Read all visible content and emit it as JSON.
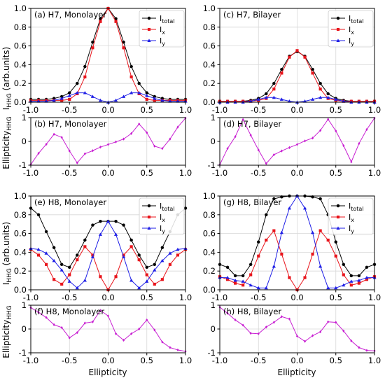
{
  "figure": {
    "ylabel_int_main": "I",
    "ylabel_int_sub": "HHG",
    "ylabel_int_tail": " (arb.units)",
    "ylabel_ell_main": "Ellipticity",
    "ylabel_ell_sub": "HHG",
    "xlabel": "Ellipticity"
  },
  "colors": {
    "total": "#000000",
    "x": "#e8141b",
    "y": "#1f1fe6",
    "ell": "#c81fd2",
    "grid": "#d8d8d8"
  },
  "chart_data": [
    {
      "id": "a",
      "type": "line",
      "title": "(a) H7, Monolayer",
      "xlim": [
        -1,
        1
      ],
      "ylim": [
        0,
        1
      ],
      "xticks": [
        "-1.0",
        "-0.5",
        "0.0",
        "0.5",
        "1.0"
      ],
      "yticks": [
        "0.0",
        "0.2",
        "0.4",
        "0.6",
        "0.8",
        "1.0"
      ],
      "legend": "top-right",
      "x": [
        -1.0,
        -0.9,
        -0.8,
        -0.7,
        -0.6,
        -0.5,
        -0.4,
        -0.3,
        -0.2,
        -0.1,
        0.0,
        0.1,
        0.2,
        0.3,
        0.4,
        0.5,
        0.6,
        0.7,
        0.8,
        0.9,
        1.0
      ],
      "series": [
        {
          "name": "I_total",
          "key": "total",
          "marker": "circle",
          "values": [
            0.03,
            0.03,
            0.03,
            0.04,
            0.06,
            0.1,
            0.2,
            0.38,
            0.64,
            0.89,
            1.0,
            0.89,
            0.64,
            0.38,
            0.2,
            0.1,
            0.06,
            0.04,
            0.03,
            0.03,
            0.03
          ]
        },
        {
          "name": "I_x",
          "key": "x",
          "marker": "square",
          "values": [
            0.02,
            0.02,
            0.02,
            0.02,
            0.02,
            0.03,
            0.09,
            0.27,
            0.58,
            0.86,
            1.0,
            0.86,
            0.58,
            0.27,
            0.09,
            0.03,
            0.02,
            0.02,
            0.02,
            0.02,
            0.02
          ]
        },
        {
          "name": "I_y",
          "key": "y",
          "marker": "triangle",
          "values": [
            0.01,
            0.01,
            0.01,
            0.02,
            0.04,
            0.07,
            0.1,
            0.1,
            0.06,
            0.02,
            0.0,
            0.02,
            0.06,
            0.1,
            0.1,
            0.07,
            0.04,
            0.02,
            0.01,
            0.01,
            0.01
          ]
        }
      ]
    },
    {
      "id": "c",
      "type": "line",
      "title": "(c) H7, Bilayer",
      "xlim": [
        -1,
        1
      ],
      "ylim": [
        0,
        1
      ],
      "xticks": [
        "-1.0",
        "-0.5",
        "0.0",
        "0.5",
        "1.0"
      ],
      "yticks": [
        "0.0",
        "0.2",
        "0.4",
        "0.6",
        "0.8",
        "1.0"
      ],
      "legend": "top-right",
      "x": [
        -1.0,
        -0.9,
        -0.8,
        -0.7,
        -0.6,
        -0.5,
        -0.4,
        -0.3,
        -0.2,
        -0.1,
        0.0,
        0.1,
        0.2,
        0.3,
        0.4,
        0.5,
        0.6,
        0.7,
        0.8,
        0.9,
        1.0
      ],
      "series": [
        {
          "name": "I_total",
          "key": "total",
          "marker": "circle",
          "values": [
            0.01,
            0.01,
            0.01,
            0.01,
            0.02,
            0.04,
            0.09,
            0.2,
            0.35,
            0.49,
            0.54,
            0.49,
            0.35,
            0.2,
            0.09,
            0.04,
            0.02,
            0.01,
            0.01,
            0.01,
            0.01
          ]
        },
        {
          "name": "I_x",
          "key": "x",
          "marker": "square",
          "values": [
            0.01,
            0.01,
            0.01,
            0.01,
            0.01,
            0.02,
            0.04,
            0.14,
            0.31,
            0.48,
            0.55,
            0.48,
            0.31,
            0.14,
            0.04,
            0.02,
            0.01,
            0.01,
            0.01,
            0.01,
            0.01
          ]
        },
        {
          "name": "I_y",
          "key": "y",
          "marker": "triangle",
          "values": [
            0.0,
            0.0,
            0.0,
            0.0,
            0.01,
            0.03,
            0.05,
            0.05,
            0.03,
            0.01,
            0.0,
            0.01,
            0.03,
            0.05,
            0.05,
            0.03,
            0.01,
            0.0,
            0.0,
            0.0,
            0.0
          ]
        }
      ]
    },
    {
      "id": "b",
      "type": "line",
      "title": "(b) H7, Monolayer",
      "xlim": [
        -1,
        1
      ],
      "ylim": [
        -1,
        1
      ],
      "xticks": [
        "-1.0",
        "-0.5",
        "0.0",
        "0.5",
        "1.0"
      ],
      "yticks": [
        "-1",
        "0",
        "1"
      ],
      "x": [
        -1.0,
        -0.9,
        -0.8,
        -0.7,
        -0.6,
        -0.5,
        -0.4,
        -0.3,
        -0.2,
        -0.1,
        0.0,
        0.1,
        0.2,
        0.3,
        0.4,
        0.5,
        0.6,
        0.7,
        0.8,
        0.9,
        1.0
      ],
      "series": [
        {
          "name": "",
          "key": "ell",
          "marker": "diamond",
          "values": [
            -0.97,
            -0.5,
            -0.12,
            0.3,
            0.17,
            -0.4,
            -0.9,
            -0.52,
            -0.39,
            -0.24,
            -0.13,
            -0.02,
            0.1,
            0.33,
            0.73,
            0.37,
            -0.2,
            -0.3,
            0.1,
            0.6,
            0.98
          ]
        }
      ]
    },
    {
      "id": "d",
      "type": "line",
      "title": "(d) H7, Bilayer",
      "xlim": [
        -1,
        1
      ],
      "ylim": [
        -1,
        1
      ],
      "xticks": [
        "-1.0",
        "-0.5",
        "0.0",
        "0.5",
        "1.0"
      ],
      "yticks": [
        "-1",
        "0",
        "1"
      ],
      "x": [
        -1.0,
        -0.9,
        -0.8,
        -0.7,
        -0.6,
        -0.5,
        -0.4,
        -0.3,
        -0.2,
        -0.1,
        0.0,
        0.1,
        0.2,
        0.3,
        0.4,
        0.5,
        0.6,
        0.7,
        0.8,
        0.9,
        1.0
      ],
      "series": [
        {
          "name": "",
          "key": "ell",
          "marker": "diamond",
          "values": [
            -0.98,
            -0.3,
            0.2,
            0.92,
            0.26,
            -0.36,
            -0.93,
            -0.56,
            -0.4,
            -0.26,
            -0.13,
            0.02,
            0.14,
            0.46,
            0.93,
            0.44,
            -0.18,
            -0.86,
            -0.09,
            0.5,
            0.98
          ]
        }
      ]
    },
    {
      "id": "e",
      "type": "line",
      "title": "(e) H8, Monolayer",
      "xlim": [
        -1,
        1
      ],
      "ylim": [
        0,
        1
      ],
      "xticks": [
        "-1.0",
        "-0.5",
        "0.0",
        "0.5",
        "1.0"
      ],
      "yticks": [
        "0.0",
        "0.2",
        "0.4",
        "0.6",
        "0.8",
        "1.0"
      ],
      "legend": "top-right",
      "x": [
        -1.0,
        -0.9,
        -0.8,
        -0.7,
        -0.6,
        -0.5,
        -0.4,
        -0.3,
        -0.2,
        -0.1,
        0.0,
        0.1,
        0.2,
        0.3,
        0.4,
        0.5,
        0.6,
        0.7,
        0.8,
        0.9,
        1.0
      ],
      "series": [
        {
          "name": "I_total",
          "key": "total",
          "marker": "circle",
          "values": [
            0.87,
            0.8,
            0.62,
            0.45,
            0.27,
            0.24,
            0.37,
            0.53,
            0.69,
            0.73,
            0.73,
            0.73,
            0.69,
            0.53,
            0.37,
            0.24,
            0.27,
            0.45,
            0.62,
            0.8,
            0.87
          ]
        },
        {
          "name": "I_x",
          "key": "x",
          "marker": "square",
          "values": [
            0.43,
            0.37,
            0.27,
            0.11,
            0.06,
            0.16,
            0.32,
            0.46,
            0.37,
            0.14,
            0.0,
            0.14,
            0.37,
            0.46,
            0.32,
            0.16,
            0.06,
            0.11,
            0.27,
            0.37,
            0.43
          ]
        },
        {
          "name": "I_y",
          "key": "y",
          "marker": "triangle",
          "values": [
            0.44,
            0.43,
            0.39,
            0.31,
            0.21,
            0.09,
            0.02,
            0.1,
            0.35,
            0.59,
            0.73,
            0.59,
            0.35,
            0.1,
            0.02,
            0.09,
            0.21,
            0.31,
            0.39,
            0.43,
            0.44
          ]
        }
      ]
    },
    {
      "id": "g",
      "type": "line",
      "title": "(g) H8, Bilayer",
      "xlim": [
        -1,
        1
      ],
      "ylim": [
        0,
        1
      ],
      "xticks": [
        "-1.0",
        "-0.5",
        "0.0",
        "0.5",
        "1.0"
      ],
      "yticks": [
        "0.0",
        "0.2",
        "0.4",
        "0.6",
        "0.8",
        "1.0"
      ],
      "legend": "top-right",
      "x": [
        -1.0,
        -0.9,
        -0.8,
        -0.7,
        -0.6,
        -0.5,
        -0.4,
        -0.3,
        -0.2,
        -0.1,
        0.0,
        0.1,
        0.2,
        0.3,
        0.4,
        0.5,
        0.6,
        0.7,
        0.8,
        0.9,
        1.0
      ],
      "series": [
        {
          "name": "I_total",
          "key": "total",
          "marker": "circle",
          "values": [
            0.27,
            0.24,
            0.15,
            0.15,
            0.27,
            0.51,
            0.8,
            0.97,
            0.99,
            1.0,
            1.0,
            1.0,
            0.99,
            0.97,
            0.8,
            0.51,
            0.27,
            0.15,
            0.15,
            0.24,
            0.27
          ]
        },
        {
          "name": "I_x",
          "key": "x",
          "marker": "square",
          "values": [
            0.14,
            0.11,
            0.07,
            0.05,
            0.16,
            0.36,
            0.53,
            0.63,
            0.38,
            0.13,
            0.0,
            0.13,
            0.38,
            0.63,
            0.53,
            0.36,
            0.16,
            0.05,
            0.07,
            0.11,
            0.14
          ]
        },
        {
          "name": "I_y",
          "key": "y",
          "marker": "triangle",
          "values": [
            0.13,
            0.13,
            0.1,
            0.09,
            0.05,
            0.02,
            0.02,
            0.25,
            0.61,
            0.87,
            1.0,
            0.87,
            0.61,
            0.25,
            0.02,
            0.02,
            0.05,
            0.09,
            0.1,
            0.13,
            0.13
          ]
        }
      ]
    },
    {
      "id": "f",
      "type": "line",
      "title": "(f) H8, Monolayer",
      "xlim": [
        -1,
        1
      ],
      "ylim": [
        -1,
        1
      ],
      "xticks": [
        "-1.0",
        "-0.5",
        "0.0",
        "0.5",
        "1.0"
      ],
      "yticks": [
        "-1",
        "0",
        "1"
      ],
      "x": [
        -1.0,
        -0.9,
        -0.8,
        -0.7,
        -0.6,
        -0.5,
        -0.4,
        -0.3,
        -0.2,
        -0.1,
        0.0,
        0.1,
        0.2,
        0.3,
        0.4,
        0.5,
        0.6,
        0.7,
        0.8,
        0.9,
        1.0
      ],
      "series": [
        {
          "name": "",
          "key": "ell",
          "marker": "diamond",
          "values": [
            0.9,
            0.7,
            0.48,
            0.18,
            0.06,
            -0.37,
            -0.15,
            0.25,
            0.3,
            0.78,
            0.55,
            -0.2,
            -0.47,
            -0.2,
            0.0,
            0.38,
            -0.04,
            -0.55,
            -0.78,
            -0.88,
            -0.94
          ]
        }
      ]
    },
    {
      "id": "h",
      "type": "line",
      "title": "(h) H8, Bilayer",
      "xlim": [
        -1,
        1
      ],
      "ylim": [
        -1,
        1
      ],
      "xticks": [
        "-1.0",
        "-0.5",
        "0.0",
        "0.5",
        "1.0"
      ],
      "yticks": [
        "-1",
        "0",
        "1"
      ],
      "x": [
        -1.0,
        -0.9,
        -0.8,
        -0.7,
        -0.6,
        -0.5,
        -0.4,
        -0.3,
        -0.2,
        -0.1,
        0.0,
        0.1,
        0.2,
        0.3,
        0.4,
        0.5,
        0.6,
        0.7,
        0.8,
        0.9,
        1.0
      ],
      "series": [
        {
          "name": "",
          "key": "ell",
          "marker": "diamond",
          "values": [
            0.92,
            0.66,
            0.38,
            0.16,
            -0.18,
            -0.2,
            0.08,
            0.28,
            0.52,
            0.42,
            -0.3,
            -0.52,
            -0.28,
            -0.12,
            0.3,
            0.28,
            -0.08,
            -0.5,
            -0.78,
            -0.9,
            -0.92
          ]
        }
      ]
    }
  ]
}
